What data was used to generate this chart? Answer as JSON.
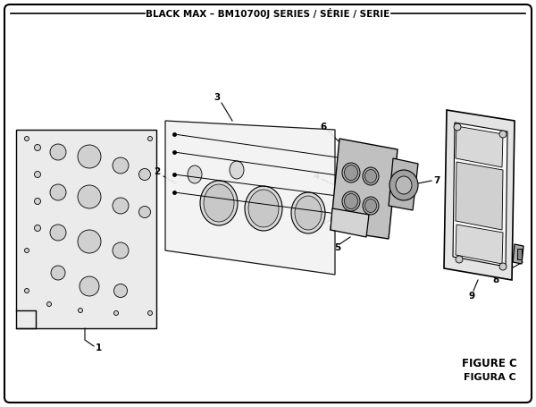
{
  "title": "BLACK MAX – BM10700J SERIES / SÉRIE / SERIE",
  "figure_label": "FIGURE C",
  "figura_label": "FIGURA C",
  "bg_color": "#ffffff",
  "border_color": "#000000"
}
